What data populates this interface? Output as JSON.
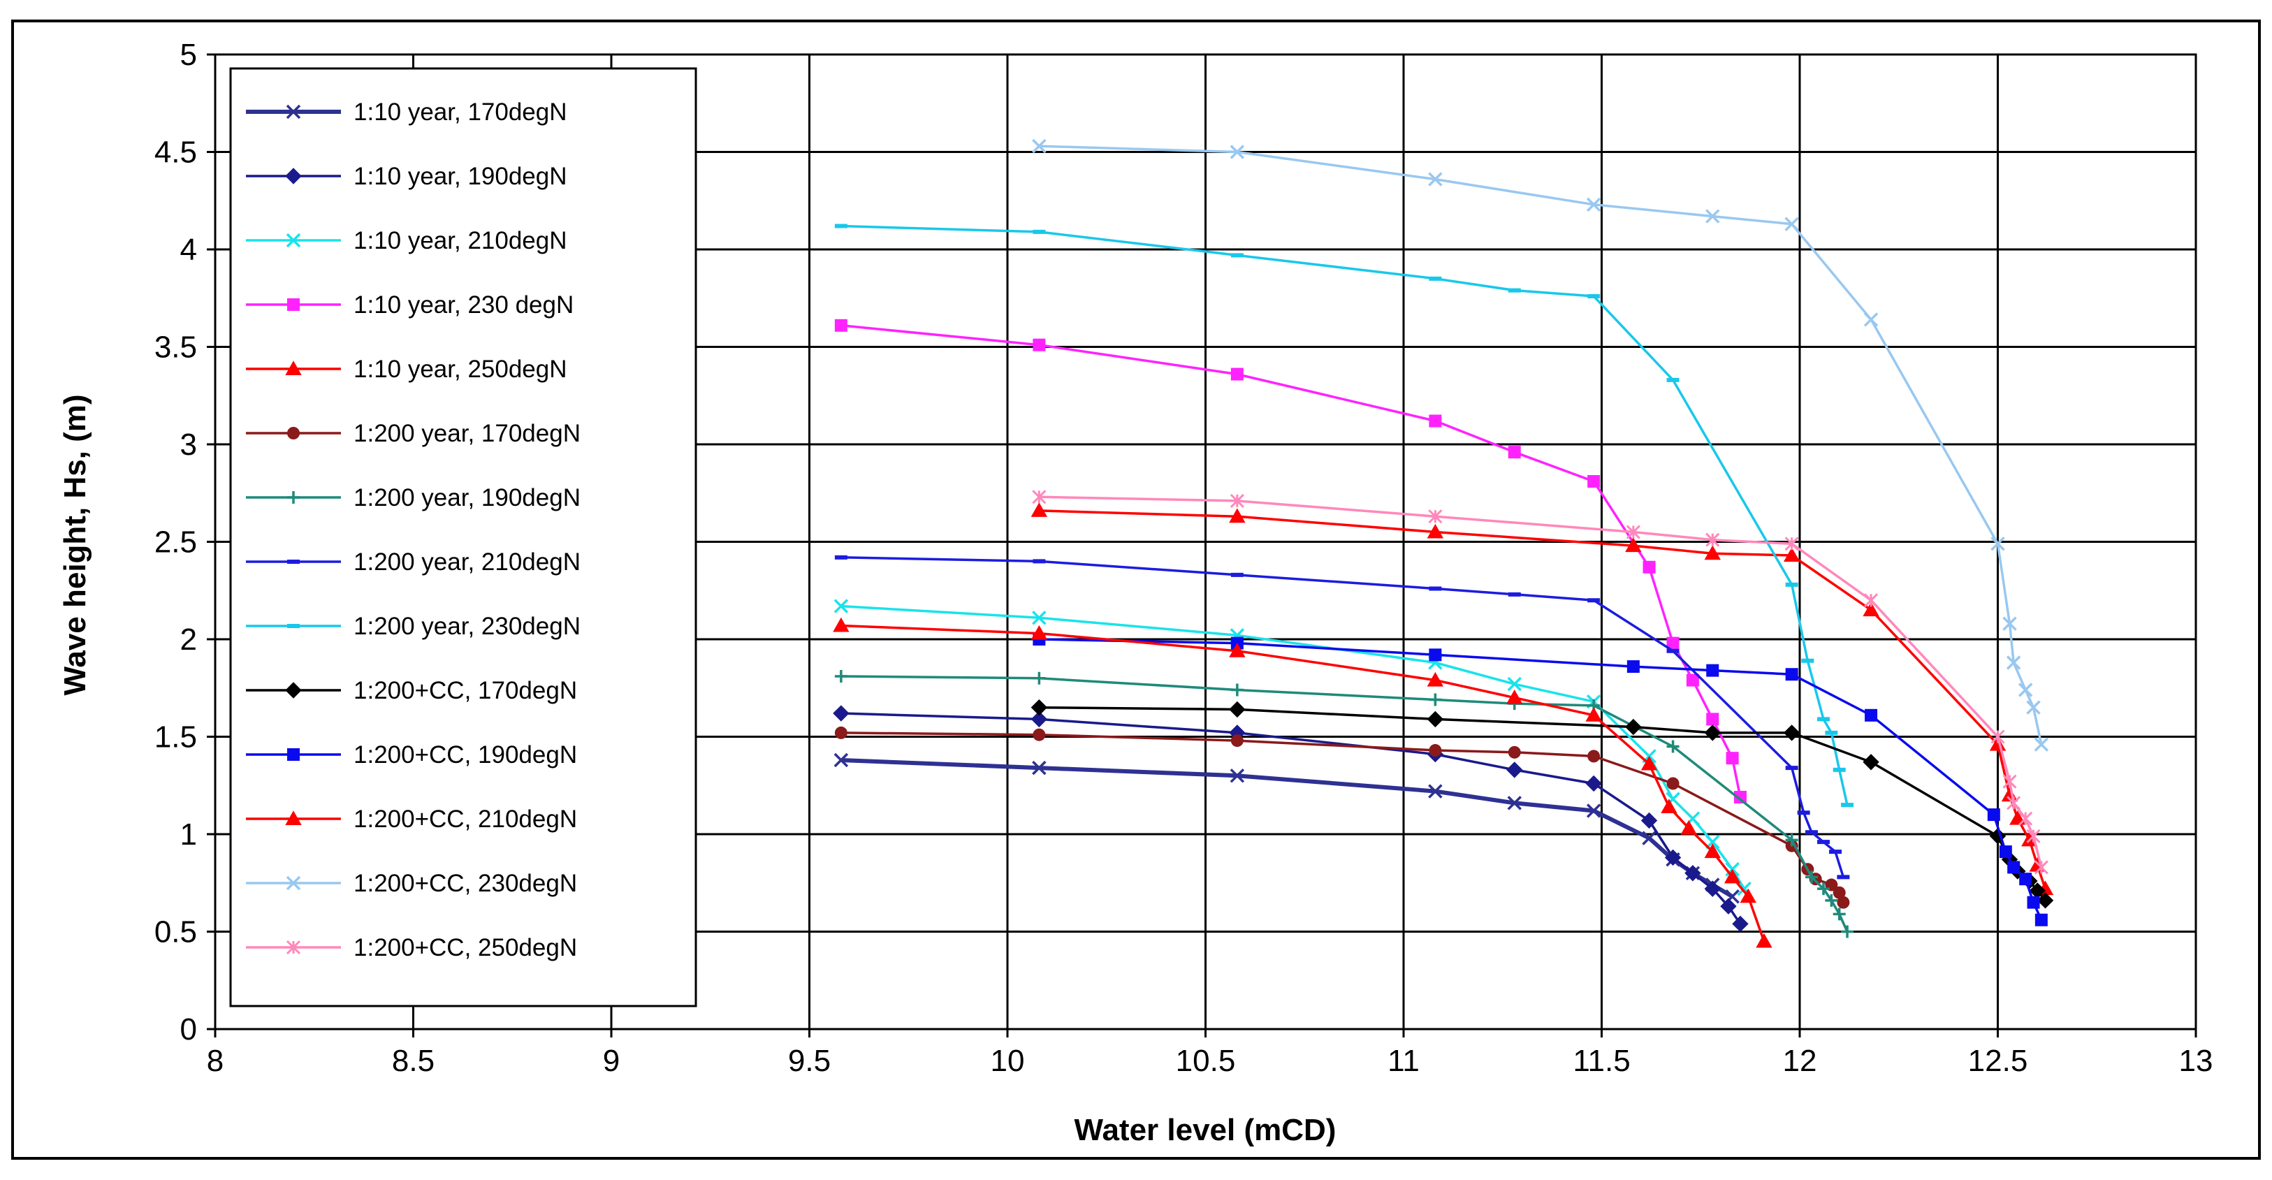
{
  "chart_data": {
    "type": "line",
    "title": "",
    "xlabel": "Water level (mCD)",
    "ylabel": "Wave height, Hs, (m)",
    "xlim": [
      8,
      13
    ],
    "ylim": [
      0,
      5
    ],
    "xticks": [
      8,
      8.5,
      9,
      9.5,
      10,
      10.5,
      11,
      11.5,
      12,
      12.5,
      13
    ],
    "xtick_labels": [
      "8",
      "8.5",
      "9",
      "9.5",
      "10",
      "10.5",
      "11",
      "11.5",
      "12",
      "12.5",
      "13"
    ],
    "yticks": [
      0,
      0.5,
      1,
      1.5,
      2,
      2.5,
      3,
      3.5,
      4,
      4.5,
      5
    ],
    "ytick_labels": [
      "0",
      "0.5",
      "1",
      "1.5",
      "2",
      "2.5",
      "3",
      "3.5",
      "4",
      "4.5",
      "5"
    ],
    "grid": true,
    "legend_position": "left",
    "series": [
      {
        "name": "1:10 year, 170degN",
        "color": "#2e3192",
        "marker": "x",
        "thick": true,
        "x": [
          9.58,
          10.08,
          10.58,
          11.08,
          11.28,
          11.48,
          11.62,
          11.68,
          11.73,
          11.78,
          11.83
        ],
        "y": [
          1.38,
          1.34,
          1.3,
          1.22,
          1.16,
          1.12,
          0.98,
          0.87,
          0.8,
          0.74,
          0.68
        ]
      },
      {
        "name": "1:10 year, 190degN",
        "color": "#1a1a8c",
        "marker": "diamond",
        "x": [
          9.58,
          10.08,
          10.58,
          11.08,
          11.28,
          11.48,
          11.62,
          11.68,
          11.73,
          11.78,
          11.82,
          11.85
        ],
        "y": [
          1.62,
          1.59,
          1.52,
          1.41,
          1.33,
          1.26,
          1.07,
          0.88,
          0.8,
          0.72,
          0.63,
          0.54
        ]
      },
      {
        "name": "1:10 year, 210degN",
        "color": "#19e3ea",
        "marker": "x",
        "x": [
          9.58,
          10.08,
          10.58,
          11.08,
          11.28,
          11.48,
          11.62,
          11.68,
          11.73,
          11.78,
          11.83,
          11.86
        ],
        "y": [
          2.17,
          2.11,
          2.02,
          1.88,
          1.77,
          1.68,
          1.4,
          1.18,
          1.08,
          0.96,
          0.82,
          0.72
        ]
      },
      {
        "name": "1:10 year, 230 degN",
        "color": "#ff22ff",
        "marker": "square",
        "x": [
          9.58,
          10.08,
          10.58,
          11.08,
          11.28,
          11.48,
          11.62,
          11.68,
          11.73,
          11.78,
          11.83,
          11.85
        ],
        "y": [
          3.61,
          3.51,
          3.36,
          3.12,
          2.96,
          2.81,
          2.37,
          1.98,
          1.79,
          1.59,
          1.39,
          1.19
        ]
      },
      {
        "name": "1:10 year, 250degN",
        "color": "#ff0000",
        "marker": "triangle",
        "x": [
          10.08,
          10.58,
          11.08,
          11.58,
          11.78,
          11.98,
          12.18,
          12.5,
          12.53,
          12.55,
          12.58,
          12.6,
          12.62
        ],
        "y": [
          2.66,
          2.63,
          2.55,
          2.48,
          2.44,
          2.43,
          2.15,
          1.46,
          1.2,
          1.08,
          0.97,
          0.84,
          0.72
        ]
      },
      {
        "name": "1:200 year, 170degN",
        "color": "#8b1a1a",
        "marker": "circle",
        "x": [
          9.58,
          10.08,
          10.58,
          11.08,
          11.28,
          11.48,
          11.68,
          11.98,
          12.02,
          12.04,
          12.08,
          12.1,
          12.11
        ],
        "y": [
          1.52,
          1.51,
          1.48,
          1.43,
          1.42,
          1.4,
          1.26,
          0.94,
          0.82,
          0.77,
          0.74,
          0.7,
          0.65
        ]
      },
      {
        "name": "1:200 year, 190degN",
        "color": "#1f8a7a",
        "marker": "plus",
        "x": [
          9.58,
          10.08,
          10.58,
          11.08,
          11.28,
          11.48,
          11.68,
          11.98,
          12.03,
          12.06,
          12.08,
          12.1,
          12.12
        ],
        "y": [
          1.81,
          1.8,
          1.74,
          1.69,
          1.67,
          1.66,
          1.45,
          0.97,
          0.78,
          0.72,
          0.66,
          0.59,
          0.5
        ]
      },
      {
        "name": "1:200 year, 210degN",
        "color": "#1c1ce0",
        "marker": "dash",
        "x": [
          9.58,
          10.08,
          10.58,
          11.08,
          11.28,
          11.48,
          11.68,
          11.98,
          12.01,
          12.03,
          12.06,
          12.09,
          12.11
        ],
        "y": [
          2.42,
          2.4,
          2.33,
          2.26,
          2.23,
          2.2,
          1.94,
          1.34,
          1.11,
          1.01,
          0.96,
          0.91,
          0.78
        ]
      },
      {
        "name": "1:200 year, 230degN",
        "color": "#18c8ea",
        "marker": "dash",
        "x": [
          9.58,
          10.08,
          10.58,
          11.08,
          11.28,
          11.48,
          11.68,
          11.98,
          12.02,
          12.06,
          12.08,
          12.1,
          12.12
        ],
        "y": [
          4.12,
          4.09,
          3.97,
          3.85,
          3.79,
          3.76,
          3.33,
          2.28,
          1.89,
          1.59,
          1.52,
          1.33,
          1.15
        ]
      },
      {
        "name": "1:200+CC, 170degN",
        "color": "#000000",
        "marker": "diamond",
        "x": [
          10.08,
          10.58,
          11.08,
          11.58,
          11.78,
          11.98,
          12.18,
          12.5,
          12.53,
          12.55,
          12.58,
          12.6,
          12.62
        ],
        "y": [
          1.65,
          1.64,
          1.59,
          1.55,
          1.52,
          1.52,
          1.37,
          0.99,
          0.87,
          0.81,
          0.76,
          0.71,
          0.66
        ]
      },
      {
        "name": "1:200+CC, 190degN",
        "color": "#0a0aee",
        "marker": "square",
        "x": [
          10.08,
          10.58,
          11.08,
          11.58,
          11.78,
          11.98,
          12.18,
          12.49,
          12.52,
          12.54,
          12.57,
          12.59,
          12.61
        ],
        "y": [
          2.0,
          1.98,
          1.92,
          1.86,
          1.84,
          1.82,
          1.61,
          1.1,
          0.91,
          0.83,
          0.77,
          0.65,
          0.56
        ]
      },
      {
        "name": "1:200+CC, 210degN",
        "color": "#ff0000",
        "marker": "triangle",
        "x": [
          9.58,
          10.08,
          10.58,
          11.08,
          11.28,
          11.48,
          11.62,
          11.67,
          11.72,
          11.78,
          11.83,
          11.87,
          11.91
        ],
        "y": [
          2.07,
          2.03,
          1.94,
          1.79,
          1.7,
          1.61,
          1.36,
          1.14,
          1.03,
          0.91,
          0.78,
          0.68,
          0.45
        ]
      },
      {
        "name": "1:200+CC, 230degN",
        "color": "#99c8f0",
        "marker": "x",
        "x": [
          10.08,
          10.58,
          11.08,
          11.48,
          11.78,
          11.98,
          12.18,
          12.5,
          12.53,
          12.54,
          12.57,
          12.59,
          12.61
        ],
        "y": [
          4.53,
          4.5,
          4.36,
          4.23,
          4.17,
          4.13,
          3.64,
          2.49,
          2.08,
          1.88,
          1.74,
          1.65,
          1.46
        ]
      },
      {
        "name": "1:200+CC, 250degN",
        "color": "#ff88bb",
        "marker": "asterisk",
        "x": [
          10.08,
          10.58,
          11.08,
          11.58,
          11.78,
          11.98,
          12.18,
          12.5,
          12.53,
          12.54,
          12.57,
          12.59,
          12.61
        ],
        "y": [
          2.73,
          2.71,
          2.63,
          2.55,
          2.51,
          2.49,
          2.2,
          1.5,
          1.27,
          1.16,
          1.08,
          0.99,
          0.83
        ]
      }
    ]
  }
}
